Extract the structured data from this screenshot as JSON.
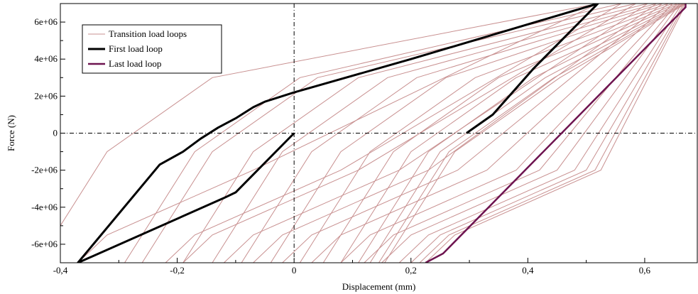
{
  "chart_data": {
    "type": "line",
    "title": "",
    "xlabel": "Displacement (mm)",
    "ylabel": "Force (N)",
    "xlim": [
      -0.4,
      0.69
    ],
    "ylim": [
      -7000000,
      7000000
    ],
    "x_ticks": [
      -0.4,
      -0.2,
      0,
      0.2,
      0.4,
      0.6
    ],
    "x_tick_labels": [
      "-0,4",
      "-0,2",
      "0",
      "0,2",
      "0,4",
      "0,6"
    ],
    "y_ticks": [
      -6000000,
      -4000000,
      -2000000,
      0,
      2000000,
      4000000,
      6000000
    ],
    "y_tick_labels": [
      "-6e+06",
      "-4e+06",
      "-2e+06",
      "0",
      "2e+06",
      "4e+06",
      "6e+06"
    ],
    "grid": false,
    "zero_lines": true,
    "legend_position": "top-left",
    "colors": {
      "transition": "#c89090",
      "first": "#000000",
      "last": "#6e1450"
    },
    "series": [
      {
        "name": "Transition load loops",
        "role": "transition",
        "loops": [
          {
            "lower_start": -0.37,
            "upper_end": 0.52
          },
          {
            "lower_start": -0.22,
            "upper_end": 0.56
          },
          {
            "lower_start": -0.19,
            "upper_end": 0.585
          },
          {
            "lower_start": -0.12,
            "upper_end": 0.605
          },
          {
            "lower_start": -0.07,
            "upper_end": 0.62
          },
          {
            "lower_start": -0.02,
            "upper_end": 0.63
          },
          {
            "lower_start": 0.03,
            "upper_end": 0.64
          },
          {
            "lower_start": 0.08,
            "upper_end": 0.648
          },
          {
            "lower_start": 0.12,
            "upper_end": 0.655
          },
          {
            "lower_start": 0.15,
            "upper_end": 0.66
          },
          {
            "lower_start": 0.18,
            "upper_end": 0.664
          },
          {
            "lower_start": 0.2,
            "upper_end": 0.667
          },
          {
            "lower_start": 0.215,
            "upper_end": 0.669
          },
          {
            "lower_start": 0.225,
            "upper_end": 0.671
          }
        ]
      },
      {
        "name": "First load loop",
        "role": "first",
        "x": [
          0,
          -0.1,
          -0.12,
          -0.37,
          -0.37,
          -0.23,
          -0.19,
          -0.16,
          -0.13,
          -0.1,
          -0.07,
          -0.05,
          0,
          0.2,
          0.52,
          0.52,
          0.41,
          0.34,
          0.295
        ],
        "y": [
          0,
          -3200000,
          -3500000,
          -7000000,
          -7000000,
          -1700000,
          -1000000,
          -300000,
          300000,
          800000,
          1400000,
          1700000,
          2200000,
          4000000,
          7000000,
          7000000,
          3500000,
          1000000,
          0
        ]
      },
      {
        "name": "Last load loop",
        "role": "last",
        "x": [
          0.225,
          0.255,
          0.67,
          0.67
        ],
        "y": [
          -7000000,
          -6500000,
          6800000,
          7000000
        ]
      }
    ]
  }
}
